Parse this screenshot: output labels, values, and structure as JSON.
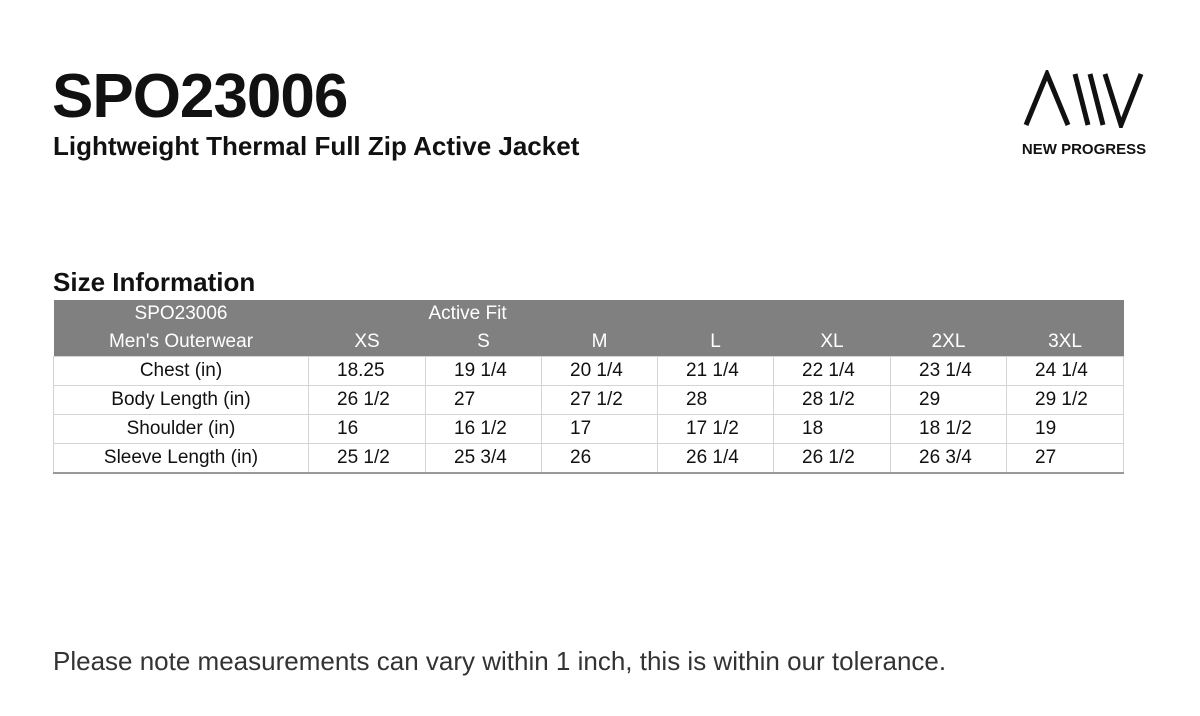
{
  "header": {
    "title": "SPO23006",
    "subtitle": "Lightweight Thermal Full Zip Active Jacket"
  },
  "logo": {
    "text": "NEW PROGRESS"
  },
  "table": {
    "title": "Size Information",
    "header_row1": [
      "SPO23006",
      "Active Fit"
    ],
    "columns": [
      "Men's Outerwear",
      "XS",
      "S",
      "M",
      "L",
      "XL",
      "2XL",
      "3XL"
    ],
    "rows": [
      [
        "Chest (in)",
        "18.25",
        "19 1/4",
        "20 1/4",
        "21 1/4",
        "22 1/4",
        "23 1/4",
        "24 1/4"
      ],
      [
        "Body Length (in)",
        "26 1/2",
        "27",
        "27 1/2",
        "28",
        "28 1/2",
        "29",
        "29 1/2"
      ],
      [
        "Shoulder (in)",
        "16",
        "16 1/2",
        "17",
        "17 1/2",
        "18",
        "18 1/2",
        "19"
      ],
      [
        "Sleeve Length (in)",
        "25 1/2",
        "25 3/4",
        "26",
        "26 1/4",
        "26 1/2",
        "26 3/4",
        "27"
      ]
    ]
  },
  "footer": {
    "note": "Please note measurements can vary within 1 inch, this is within our tolerance."
  }
}
